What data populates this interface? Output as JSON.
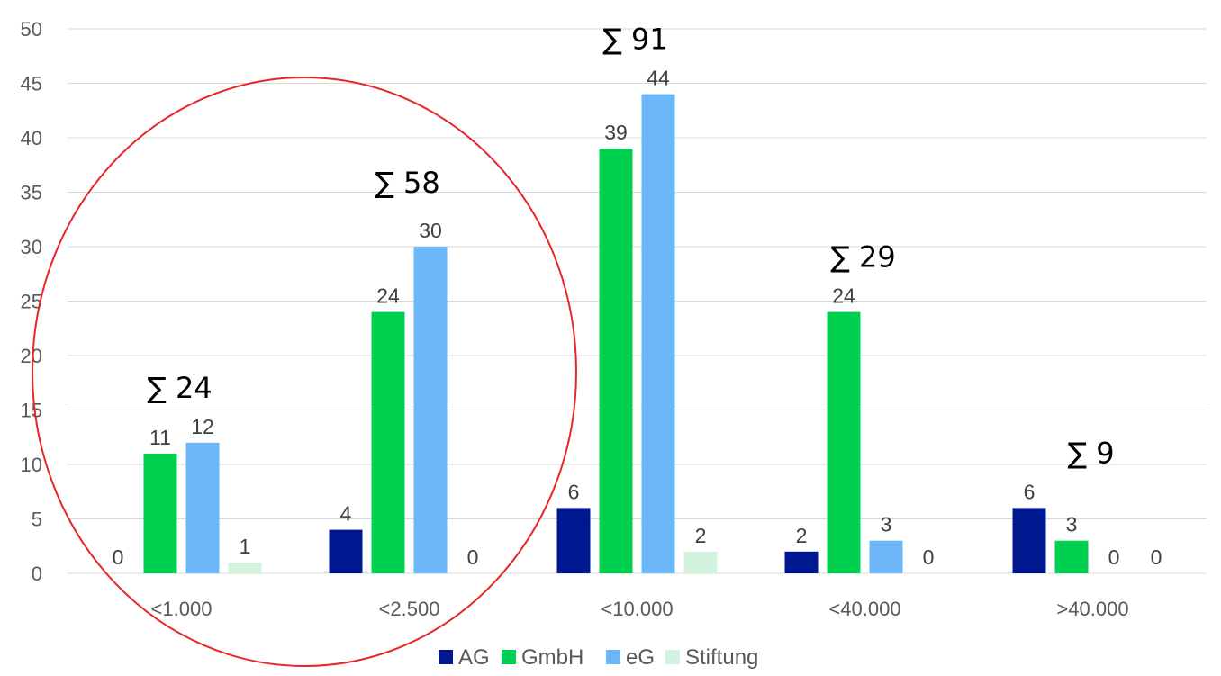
{
  "chart_data": {
    "type": "bar",
    "categories": [
      "<1.000",
      "<2.500",
      "<10.000",
      "<40.000",
      ">40.000"
    ],
    "series": [
      {
        "name": "AG",
        "color": "#00188f",
        "values": [
          0,
          4,
          6,
          2,
          6
        ]
      },
      {
        "name": "GmbH",
        "color": "#00d050",
        "values": [
          11,
          24,
          39,
          24,
          3
        ]
      },
      {
        "name": "eG",
        "color": "#6bb7f7",
        "values": [
          12,
          30,
          44,
          3,
          0
        ]
      },
      {
        "name": "Stiftung",
        "color": "#d3f3df",
        "values": [
          1,
          0,
          2,
          0,
          0
        ]
      }
    ],
    "ylim": [
      0,
      50
    ],
    "yticks": [
      0,
      5,
      10,
      15,
      20,
      25,
      30,
      35,
      40,
      45,
      50
    ],
    "grid": true,
    "legend": "bottom",
    "annotations": {
      "sums": [
        "∑ 24",
        "∑ 58",
        "∑ 91",
        "∑ 29",
        "∑ 9"
      ],
      "circle_color": "#e8262a"
    }
  }
}
